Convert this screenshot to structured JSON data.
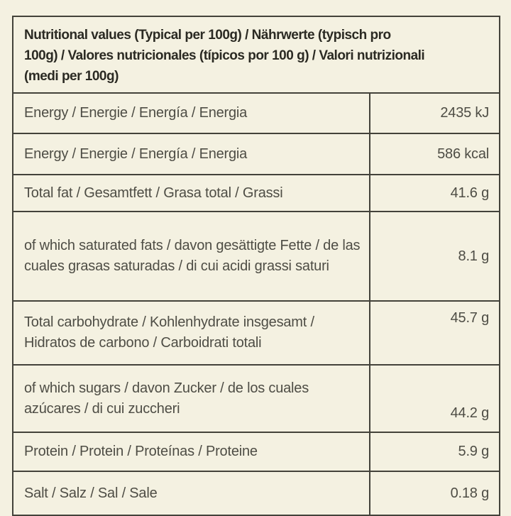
{
  "colors": {
    "background": "#f4f1e1",
    "border": "#43423a",
    "header_text": "#2b2a23",
    "body_text": "#4e4d45"
  },
  "header": {
    "lines": [
      "Nutritional values (Typical per 100g) / Nährwerte (typisch pro",
      "100g) / Valores nutricionales (típicos por 100 g) / Valori nutrizionali",
      "(medi per 100g)"
    ]
  },
  "table": {
    "rows": [
      {
        "label": "Energy / Energie / Energía / Energia",
        "value": "2435 kJ"
      },
      {
        "label": "Energy / Energie / Energía / Energia",
        "value": "586 kcal"
      },
      {
        "label": "Total fat / Gesamtfett / Grasa total / Grassi",
        "value": "41.6 g"
      },
      {
        "label": "of which saturated fats / davon gesättigte Fette / de las cuales grasas saturadas / di cui acidi grassi saturi",
        "value": "8.1 g"
      },
      {
        "label": "Total carbohydrate / Kohlenhydrate insgesamt / Hidratos de carbono / Carboidrati totali",
        "value": "45.7 g"
      },
      {
        "label": "of which sugars / davon Zucker / de los cuales azúcares / di cui zuccheri",
        "value": "44.2 g"
      },
      {
        "label": "Protein / Protein / Proteínas / Proteine",
        "value": "5.9 g"
      },
      {
        "label": "Salt / Salz / Sal / Sale",
        "value": "0.18 g"
      }
    ]
  }
}
